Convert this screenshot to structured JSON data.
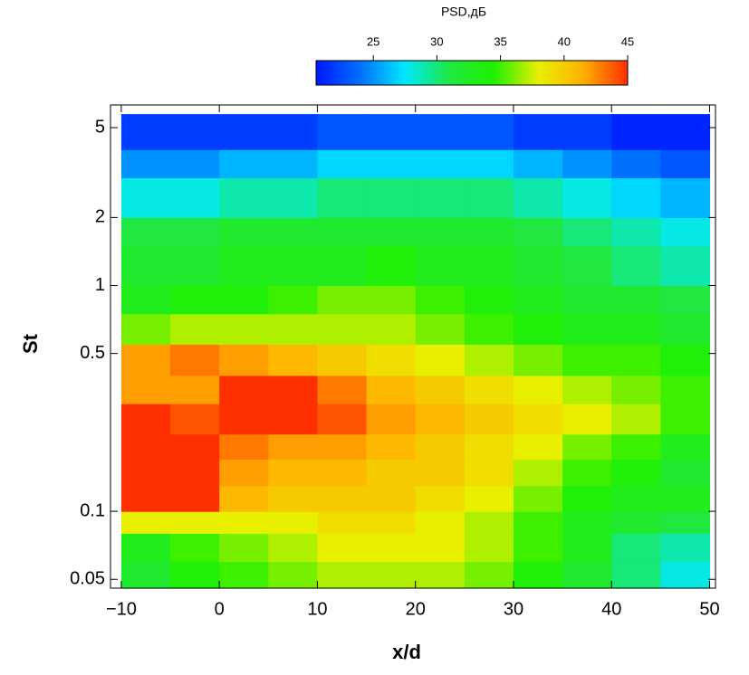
{
  "chart_data": {
    "type": "heatmap",
    "colorbar_title": "PSD,дБ",
    "x_label": "x/d",
    "y_label": "St",
    "xlim": [
      -11.1,
      50.6
    ],
    "ylim": [
      0.0457,
      6.3
    ],
    "y_log": true,
    "xticks": [
      {
        "value": -10,
        "label": "−10"
      },
      0,
      10,
      20,
      30,
      40,
      50
    ],
    "yticks": [
      0.05,
      0.1,
      0.5,
      1,
      2,
      5
    ],
    "clim": [
      20.5,
      45
    ],
    "cticks": [
      25,
      30,
      35,
      40,
      45
    ],
    "colormap": [
      "#0018ff",
      "#0070ff",
      "#00e8ff",
      "#20e840",
      "#20f000",
      "#e8f000",
      "#ffb000",
      "#ff3000"
    ],
    "xbins": [
      -10,
      -5,
      0,
      5,
      10,
      15,
      20,
      25,
      30,
      35,
      40,
      45,
      50
    ],
    "ybins": [
      0.0457,
      0.06,
      0.08,
      0.1,
      0.13,
      0.17,
      0.22,
      0.3,
      0.4,
      0.55,
      0.75,
      1,
      1.5,
      2,
      3,
      4,
      5.74
    ],
    "values": [
      [
        32,
        34,
        35,
        36,
        37,
        37,
        37,
        36,
        34,
        32,
        30,
        28
      ],
      [
        33,
        35,
        36,
        37,
        38,
        38,
        38,
        37,
        35,
        33,
        30,
        29
      ],
      [
        38,
        38,
        38,
        38,
        39,
        39,
        38,
        37,
        35,
        33,
        32,
        31
      ],
      [
        45,
        45,
        41,
        40,
        40,
        40,
        39,
        38,
        36,
        34,
        33,
        33
      ],
      [
        45,
        45,
        42,
        41,
        41,
        40,
        40,
        39,
        37,
        35,
        34,
        32
      ],
      [
        45,
        45,
        43,
        42,
        42,
        41,
        40,
        39,
        38,
        36,
        35,
        33
      ],
      [
        45,
        44,
        45,
        45,
        44,
        42,
        41,
        40,
        39,
        38,
        37,
        35
      ],
      [
        42,
        42,
        45,
        45,
        43,
        41,
        40,
        39,
        38,
        37,
        36,
        35
      ],
      [
        42,
        43,
        42,
        41,
        40,
        39,
        38,
        37,
        36,
        35,
        35,
        34
      ],
      [
        36,
        37,
        37,
        37,
        37,
        37,
        36,
        35,
        34,
        33,
        33,
        32
      ],
      [
        33,
        34,
        34,
        35,
        36,
        36,
        35,
        34,
        33,
        32,
        32,
        31
      ],
      [
        32,
        32,
        33,
        33,
        33,
        34,
        33,
        33,
        32,
        31,
        30,
        29
      ],
      [
        31,
        31,
        32,
        32,
        32,
        32,
        32,
        32,
        31,
        30,
        29,
        28
      ],
      [
        28,
        28,
        29,
        29,
        30,
        30,
        30,
        30,
        29,
        28,
        27,
        26
      ],
      [
        25,
        25,
        26,
        26,
        27,
        27,
        27,
        27,
        26,
        25,
        24,
        23
      ],
      [
        22,
        22,
        22,
        22,
        23,
        23,
        23,
        23,
        22,
        22,
        21,
        21
      ]
    ]
  }
}
